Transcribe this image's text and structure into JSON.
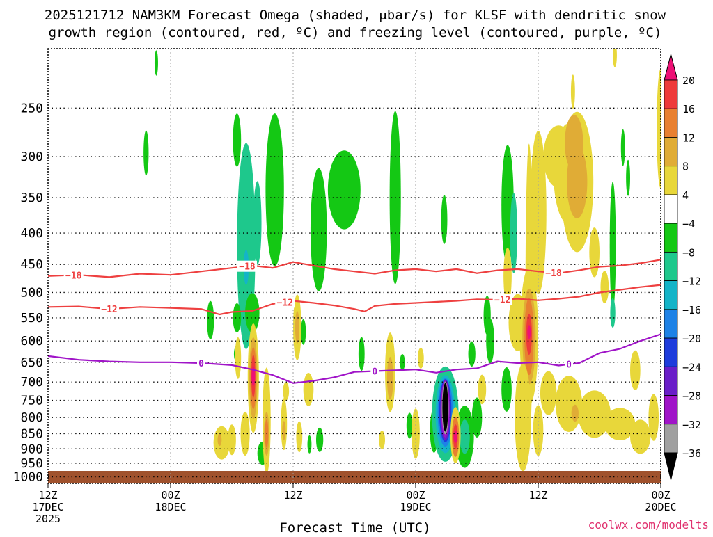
{
  "chart_data": {
    "type": "heatmap",
    "title_line1": "2025121712 NAM3KM Forecast Omega (shaded, μbar/s) for KLSF with dendritic snow",
    "title_line2": "growth region (contoured, red, ºC) and freezing level (contoured, purple, ºC)",
    "xlabel": "Forecast Time (UTC)",
    "credit": "coolwx.com/modelts",
    "x_ticks": [
      {
        "t": 0,
        "l1": "12Z",
        "l2": "17DEC",
        "l3": "2025"
      },
      {
        "t": 12,
        "l1": "00Z",
        "l2": "18DEC",
        "l3": ""
      },
      {
        "t": 24,
        "l1": "12Z",
        "l2": "",
        "l3": ""
      },
      {
        "t": 36,
        "l1": "00Z",
        "l2": "19DEC",
        "l3": ""
      },
      {
        "t": 48,
        "l1": "12Z",
        "l2": "",
        "l3": ""
      },
      {
        "t": 60,
        "l1": "00Z",
        "l2": "20DEC",
        "l3": ""
      }
    ],
    "xlim_hours": [
      0,
      60
    ],
    "y_ticks": [
      250,
      300,
      350,
      400,
      450,
      500,
      550,
      600,
      650,
      700,
      750,
      800,
      850,
      900,
      950,
      1000
    ],
    "ylim_hPa": [
      200,
      1025
    ],
    "y_scale": "log-pressure",
    "grid": true,
    "colorbar": {
      "labels": [
        "20",
        "16",
        "12",
        "8",
        "4",
        "−4",
        "−8",
        "−12",
        "−16",
        "−20",
        "−24",
        "−28",
        "−32",
        "−36"
      ],
      "bins": [
        {
          "color": "#ee1075",
          "lo": 20,
          "hi": null
        },
        {
          "color": "#ee3a3a",
          "lo": 16,
          "hi": 20
        },
        {
          "color": "#e88030",
          "lo": 12,
          "hi": 16
        },
        {
          "color": "#e0ac36",
          "lo": 8,
          "hi": 12
        },
        {
          "color": "#e8d73a",
          "lo": 4,
          "hi": 8
        },
        {
          "color": "#ffffff",
          "lo": -4,
          "hi": 4
        },
        {
          "color": "#14c814",
          "lo": -8,
          "hi": -4
        },
        {
          "color": "#1ec88c",
          "lo": -12,
          "hi": -8
        },
        {
          "color": "#14b4c8",
          "lo": -16,
          "hi": -12
        },
        {
          "color": "#1e82e6",
          "lo": -20,
          "hi": -16
        },
        {
          "color": "#1e3cdc",
          "lo": -24,
          "hi": -20
        },
        {
          "color": "#6a1ec8",
          "lo": -28,
          "hi": -24
        },
        {
          "color": "#a014c8",
          "lo": -32,
          "hi": -28
        },
        {
          "color": "#a0a0a0",
          "lo": -36,
          "hi": -32
        },
        {
          "color": "#000000",
          "lo": null,
          "hi": -36
        }
      ]
    },
    "contours": [
      {
        "label": "-18",
        "color": "#ee4040",
        "label_hours": [
          2.5,
          19.5,
          49.5
        ],
        "points": [
          [
            0,
            470
          ],
          [
            3,
            468
          ],
          [
            6,
            472
          ],
          [
            9,
            466
          ],
          [
            12,
            468
          ],
          [
            15,
            462
          ],
          [
            18,
            456
          ],
          [
            20,
            452
          ],
          [
            22,
            456
          ],
          [
            24,
            446
          ],
          [
            26,
            452
          ],
          [
            28,
            458
          ],
          [
            30,
            462
          ],
          [
            32,
            466
          ],
          [
            34,
            460
          ],
          [
            36,
            458
          ],
          [
            38,
            462
          ],
          [
            40,
            458
          ],
          [
            42,
            465
          ],
          [
            44,
            460
          ],
          [
            46,
            458
          ],
          [
            48,
            462
          ],
          [
            50,
            465
          ],
          [
            52,
            460
          ],
          [
            54,
            454
          ],
          [
            56,
            452
          ],
          [
            58,
            448
          ],
          [
            60,
            442
          ]
        ]
      },
      {
        "label": "-12",
        "color": "#ee4040",
        "label_hours": [
          6.0,
          23.2,
          44.5
        ],
        "points": [
          [
            0,
            528
          ],
          [
            3,
            527
          ],
          [
            6,
            532
          ],
          [
            9,
            528
          ],
          [
            12,
            530
          ],
          [
            15,
            532
          ],
          [
            16.8,
            543
          ],
          [
            18,
            538
          ],
          [
            20,
            536
          ],
          [
            22,
            522
          ],
          [
            24,
            516
          ],
          [
            26,
            520
          ],
          [
            28,
            525
          ],
          [
            30,
            532
          ],
          [
            31,
            537
          ],
          [
            32,
            526
          ],
          [
            34,
            522
          ],
          [
            36,
            520
          ],
          [
            38,
            518
          ],
          [
            40,
            516
          ],
          [
            42,
            513
          ],
          [
            44,
            514
          ],
          [
            46,
            512
          ],
          [
            48,
            515
          ],
          [
            50,
            512
          ],
          [
            52,
            508
          ],
          [
            54,
            500
          ],
          [
            56,
            495
          ],
          [
            58,
            490
          ],
          [
            60,
            486
          ]
        ]
      },
      {
        "label": "0",
        "color": "#a014c8",
        "label_hours": [
          15.0,
          32.0,
          51.0
        ],
        "points": [
          [
            0,
            635
          ],
          [
            3,
            644
          ],
          [
            6,
            648
          ],
          [
            9,
            650
          ],
          [
            12,
            650
          ],
          [
            15,
            652
          ],
          [
            18,
            657
          ],
          [
            20,
            668
          ],
          [
            22,
            682
          ],
          [
            24,
            703
          ],
          [
            26,
            697
          ],
          [
            28,
            688
          ],
          [
            30,
            674
          ],
          [
            32,
            672
          ],
          [
            34,
            670
          ],
          [
            36,
            668
          ],
          [
            38,
            676
          ],
          [
            40,
            668
          ],
          [
            42,
            665
          ],
          [
            44,
            648
          ],
          [
            46,
            652
          ],
          [
            48,
            650
          ],
          [
            50,
            658
          ],
          [
            52,
            652
          ],
          [
            54,
            628
          ],
          [
            56,
            618
          ],
          [
            58,
            600
          ],
          [
            60,
            585
          ]
        ]
      }
    ],
    "omega_blobs": [
      {
        "t": 19.4,
        "p": 420,
        "dt": 0.9,
        "dp": 155,
        "v": -9
      },
      {
        "t": 19.4,
        "p": 425,
        "dt": 0.5,
        "dp": 85,
        "v": -12
      },
      {
        "t": 19.4,
        "p": 455,
        "dt": 0.25,
        "dp": 30,
        "v": -16
      },
      {
        "t": 22.2,
        "p": 340,
        "dt": 0.9,
        "dp": 95,
        "v": -6
      },
      {
        "t": 26.5,
        "p": 395,
        "dt": 0.8,
        "dp": 90,
        "v": -6
      },
      {
        "t": 29.0,
        "p": 340,
        "dt": 1.6,
        "dp": 50,
        "v": -6
      },
      {
        "t": 34.0,
        "p": 350,
        "dt": 0.55,
        "dp": 110,
        "v": -6
      },
      {
        "t": 38.8,
        "p": 380,
        "dt": 0.3,
        "dp": 35,
        "v": -6
      },
      {
        "t": 18.5,
        "p": 282,
        "dt": 0.4,
        "dp": 28,
        "v": -6
      },
      {
        "t": 20.0,
        "p": 540,
        "dt": 0.7,
        "dp": 40,
        "v": -6
      },
      {
        "t": 20.5,
        "p": 385,
        "dt": 0.4,
        "dp": 60,
        "v": -9
      },
      {
        "t": 18.5,
        "p": 550,
        "dt": 0.4,
        "dp": 30,
        "v": -6
      },
      {
        "t": 45.0,
        "p": 360,
        "dt": 0.6,
        "dp": 80,
        "v": -6
      },
      {
        "t": 45.6,
        "p": 400,
        "dt": 0.35,
        "dp": 60,
        "v": -9
      },
      {
        "t": 43.0,
        "p": 545,
        "dt": 0.35,
        "dp": 40,
        "v": -6
      },
      {
        "t": 55.3,
        "p": 420,
        "dt": 0.3,
        "dp": 100,
        "v": -6
      },
      {
        "t": 55.3,
        "p": 540,
        "dt": 0.25,
        "dp": 30,
        "v": -12
      },
      {
        "t": 56.3,
        "p": 290,
        "dt": 0.2,
        "dp": 20,
        "v": -6
      },
      {
        "t": 56.8,
        "p": 325,
        "dt": 0.2,
        "dp": 22,
        "v": -6
      },
      {
        "t": 15.9,
        "p": 555,
        "dt": 0.35,
        "dp": 40,
        "v": -6
      },
      {
        "t": 18.5,
        "p": 630,
        "dt": 0.3,
        "dp": 20,
        "v": -6
      },
      {
        "t": 9.6,
        "p": 296,
        "dt": 0.25,
        "dp": 25,
        "v": -6
      },
      {
        "t": 10.6,
        "p": 211,
        "dt": 0.15,
        "dp": 10,
        "v": -6
      },
      {
        "t": 25.0,
        "p": 580,
        "dt": 0.25,
        "dp": 28,
        "v": -6
      },
      {
        "t": 30.7,
        "p": 630,
        "dt": 0.3,
        "dp": 40,
        "v": -6
      },
      {
        "t": 34.7,
        "p": 650,
        "dt": 0.25,
        "dp": 20,
        "v": -6
      },
      {
        "t": 41.5,
        "p": 630,
        "dt": 0.35,
        "dp": 30,
        "v": -6
      },
      {
        "t": 26.6,
        "p": 870,
        "dt": 0.35,
        "dp": 40,
        "v": -6
      },
      {
        "t": 25.6,
        "p": 885,
        "dt": 0.2,
        "dp": 30,
        "v": -6
      },
      {
        "t": 35.4,
        "p": 825,
        "dt": 0.3,
        "dp": 40,
        "v": -6
      },
      {
        "t": 37.8,
        "p": 840,
        "dt": 0.4,
        "dp": 70,
        "v": -6
      },
      {
        "t": 21.0,
        "p": 915,
        "dt": 0.5,
        "dp": 40,
        "v": -6
      },
      {
        "t": 40.8,
        "p": 860,
        "dt": 0.9,
        "dp": 100,
        "v": -6
      },
      {
        "t": 40.8,
        "p": 860,
        "dt": 0.5,
        "dp": 55,
        "v": -12
      },
      {
        "t": 42.0,
        "p": 800,
        "dt": 0.5,
        "dp": 60,
        "v": -6
      },
      {
        "t": 43.3,
        "p": 600,
        "dt": 0.4,
        "dp": 50,
        "v": -6
      },
      {
        "t": 44.9,
        "p": 720,
        "dt": 0.5,
        "dp": 60,
        "v": -6
      },
      {
        "t": 38.9,
        "p": 790,
        "dt": 1.3,
        "dp": 140,
        "v": -9
      },
      {
        "t": 38.9,
        "p": 790,
        "dt": 0.95,
        "dp": 115,
        "v": -13
      },
      {
        "t": 38.9,
        "p": 785,
        "dt": 0.75,
        "dp": 100,
        "v": -17
      },
      {
        "t": 38.9,
        "p": 780,
        "dt": 0.6,
        "dp": 92,
        "v": -22
      },
      {
        "t": 38.9,
        "p": 778,
        "dt": 0.5,
        "dp": 88,
        "v": -26
      },
      {
        "t": 38.9,
        "p": 775,
        "dt": 0.42,
        "dp": 82,
        "v": -30
      },
      {
        "t": 38.9,
        "p": 772,
        "dt": 0.34,
        "dp": 76,
        "v": -34
      },
      {
        "t": 38.9,
        "p": 770,
        "dt": 0.28,
        "dp": 70,
        "v": -38
      },
      {
        "t": 50.0,
        "p": 300,
        "dt": 1.5,
        "dp": 35,
        "v": 6
      },
      {
        "t": 51.0,
        "p": 320,
        "dt": 1.5,
        "dp": 60,
        "v": 6
      },
      {
        "t": 51.8,
        "p": 330,
        "dt": 1.6,
        "dp": 85,
        "v": 6
      },
      {
        "t": 51.5,
        "p": 285,
        "dt": 0.9,
        "dp": 30,
        "v": 10
      },
      {
        "t": 51.8,
        "p": 330,
        "dt": 1.0,
        "dp": 45,
        "v": 10
      },
      {
        "t": 53.5,
        "p": 430,
        "dt": 0.5,
        "dp": 40,
        "v": 6
      },
      {
        "t": 54.5,
        "p": 490,
        "dt": 0.4,
        "dp": 30,
        "v": 6
      },
      {
        "t": 60.0,
        "p": 270,
        "dt": 0.4,
        "dp": 60,
        "v": 6
      },
      {
        "t": 55.5,
        "p": 205,
        "dt": 0.2,
        "dp": 15,
        "v": 6
      },
      {
        "t": 51.4,
        "p": 235,
        "dt": 0.2,
        "dp": 15,
        "v": 6
      },
      {
        "t": 47.1,
        "p": 505,
        "dt": 0.35,
        "dp": 260,
        "v": 6
      },
      {
        "t": 48.0,
        "p": 370,
        "dt": 0.8,
        "dp": 110,
        "v": 6
      },
      {
        "t": 45.0,
        "p": 470,
        "dt": 0.4,
        "dp": 50,
        "v": 6
      },
      {
        "t": 46.0,
        "p": 560,
        "dt": 0.9,
        "dp": 60,
        "v": 6
      },
      {
        "t": 47.1,
        "p": 590,
        "dt": 0.9,
        "dp": 150,
        "v": 6
      },
      {
        "t": 47.1,
        "p": 590,
        "dt": 0.65,
        "dp": 105,
        "v": 10
      },
      {
        "t": 47.1,
        "p": 590,
        "dt": 0.45,
        "dp": 85,
        "v": 13
      },
      {
        "t": 47.1,
        "p": 585,
        "dt": 0.28,
        "dp": 45,
        "v": 17
      },
      {
        "t": 47.1,
        "p": 580,
        "dt": 0.12,
        "dp": 15,
        "v": 21
      },
      {
        "t": 46.5,
        "p": 800,
        "dt": 0.8,
        "dp": 160,
        "v": 6
      },
      {
        "t": 48.0,
        "p": 840,
        "dt": 0.5,
        "dp": 80,
        "v": 6
      },
      {
        "t": 49.0,
        "p": 730,
        "dt": 0.8,
        "dp": 60,
        "v": 6
      },
      {
        "t": 51.0,
        "p": 760,
        "dt": 1.3,
        "dp": 80,
        "v": 6
      },
      {
        "t": 53.5,
        "p": 790,
        "dt": 1.6,
        "dp": 70,
        "v": 6
      },
      {
        "t": 56.0,
        "p": 820,
        "dt": 1.5,
        "dp": 50,
        "v": 6
      },
      {
        "t": 58.0,
        "p": 860,
        "dt": 1.0,
        "dp": 55,
        "v": 6
      },
      {
        "t": 59.3,
        "p": 800,
        "dt": 0.5,
        "dp": 70,
        "v": 6
      },
      {
        "t": 57.5,
        "p": 670,
        "dt": 0.5,
        "dp": 50,
        "v": 6
      },
      {
        "t": 51.6,
        "p": 787,
        "dt": 0.35,
        "dp": 25,
        "v": 10
      },
      {
        "t": 20.1,
        "p": 690,
        "dt": 0.55,
        "dp": 140,
        "v": 6
      },
      {
        "t": 20.1,
        "p": 690,
        "dt": 0.4,
        "dp": 105,
        "v": 10
      },
      {
        "t": 20.1,
        "p": 690,
        "dt": 0.3,
        "dp": 80,
        "v": 14
      },
      {
        "t": 20.1,
        "p": 685,
        "dt": 0.2,
        "dp": 55,
        "v": 17
      },
      {
        "t": 20.1,
        "p": 685,
        "dt": 0.1,
        "dp": 25,
        "v": 21
      },
      {
        "t": 21.4,
        "p": 810,
        "dt": 0.4,
        "dp": 160,
        "v": 6
      },
      {
        "t": 21.4,
        "p": 850,
        "dt": 0.25,
        "dp": 70,
        "v": 10
      },
      {
        "t": 21.4,
        "p": 850,
        "dt": 0.15,
        "dp": 45,
        "v": 13
      },
      {
        "t": 23.1,
        "p": 820,
        "dt": 0.3,
        "dp": 80,
        "v": 6
      },
      {
        "t": 23.1,
        "p": 840,
        "dt": 0.15,
        "dp": 30,
        "v": 10
      },
      {
        "t": 24.6,
        "p": 860,
        "dt": 0.3,
        "dp": 50,
        "v": 6
      },
      {
        "t": 24.4,
        "p": 570,
        "dt": 0.4,
        "dp": 70,
        "v": 6
      },
      {
        "t": 24.4,
        "p": 570,
        "dt": 0.2,
        "dp": 35,
        "v": 10
      },
      {
        "t": 25.5,
        "p": 720,
        "dt": 0.5,
        "dp": 45,
        "v": 6
      },
      {
        "t": 23.3,
        "p": 725,
        "dt": 0.3,
        "dp": 25,
        "v": 6
      },
      {
        "t": 18.6,
        "p": 640,
        "dt": 0.3,
        "dp": 50,
        "v": 6
      },
      {
        "t": 19.3,
        "p": 850,
        "dt": 0.45,
        "dp": 70,
        "v": 6
      },
      {
        "t": 18.0,
        "p": 870,
        "dt": 0.4,
        "dp": 50,
        "v": 6
      },
      {
        "t": 17.0,
        "p": 880,
        "dt": 0.8,
        "dp": 55,
        "v": 6
      },
      {
        "t": 16.8,
        "p": 870,
        "dt": 0.2,
        "dp": 20,
        "v": 10
      },
      {
        "t": 33.5,
        "p": 675,
        "dt": 0.5,
        "dp": 100,
        "v": 6
      },
      {
        "t": 33.5,
        "p": 690,
        "dt": 0.3,
        "dp": 55,
        "v": 10
      },
      {
        "t": 36.0,
        "p": 850,
        "dt": 0.4,
        "dp": 80,
        "v": 6
      },
      {
        "t": 39.9,
        "p": 855,
        "dt": 0.5,
        "dp": 90,
        "v": 6
      },
      {
        "t": 39.9,
        "p": 860,
        "dt": 0.35,
        "dp": 65,
        "v": 12
      },
      {
        "t": 39.9,
        "p": 860,
        "dt": 0.22,
        "dp": 40,
        "v": 17
      },
      {
        "t": 39.9,
        "p": 860,
        "dt": 0.12,
        "dp": 20,
        "v": 21
      },
      {
        "t": 42.5,
        "p": 720,
        "dt": 0.4,
        "dp": 40,
        "v": 6
      },
      {
        "t": 36.5,
        "p": 640,
        "dt": 0.3,
        "dp": 25,
        "v": 6
      },
      {
        "t": 32.7,
        "p": 870,
        "dt": 0.3,
        "dp": 30,
        "v": 6
      }
    ]
  }
}
